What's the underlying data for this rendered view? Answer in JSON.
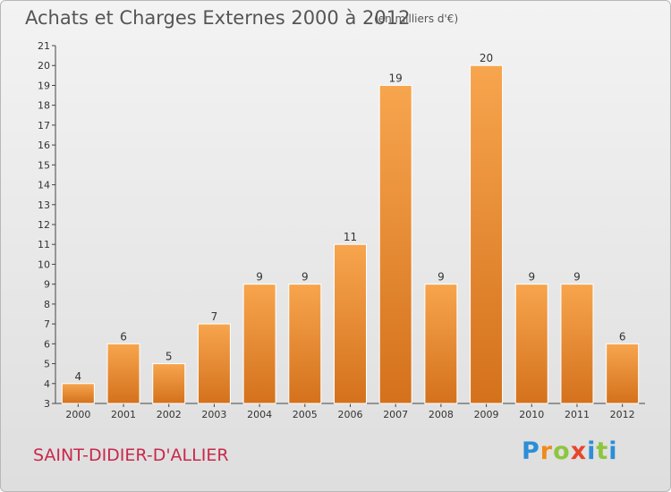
{
  "header": {
    "title": "Achats et Charges Externes 2000 à 2012",
    "unit": "(en milliers d'€)"
  },
  "footer": {
    "commune": "SAINT-DIDIER-D'ALLIER",
    "logo": [
      "P",
      "r",
      "o",
      "x",
      "i",
      "t",
      "i"
    ]
  },
  "colors": {
    "bar_top": "#f7a54e",
    "bar_bottom": "#d4711c",
    "commune_text": "#c8294b"
  },
  "chart_data": {
    "type": "bar",
    "title": "Achats et Charges Externes 2000 à 2012",
    "subtitle": "(en milliers d'€)",
    "categories": [
      "2000",
      "2001",
      "2002",
      "2003",
      "2004",
      "2005",
      "2006",
      "2007",
      "2008",
      "2009",
      "2010",
      "2011",
      "2012"
    ],
    "values": [
      4,
      6,
      5,
      7,
      9,
      9,
      11,
      19,
      9,
      20,
      9,
      9,
      6
    ],
    "ylim": [
      3,
      21
    ],
    "yticks": [
      3,
      4,
      5,
      6,
      7,
      8,
      9,
      10,
      11,
      12,
      13,
      14,
      15,
      16,
      17,
      18,
      19,
      20,
      21
    ],
    "grid": false,
    "data_labels": true
  }
}
